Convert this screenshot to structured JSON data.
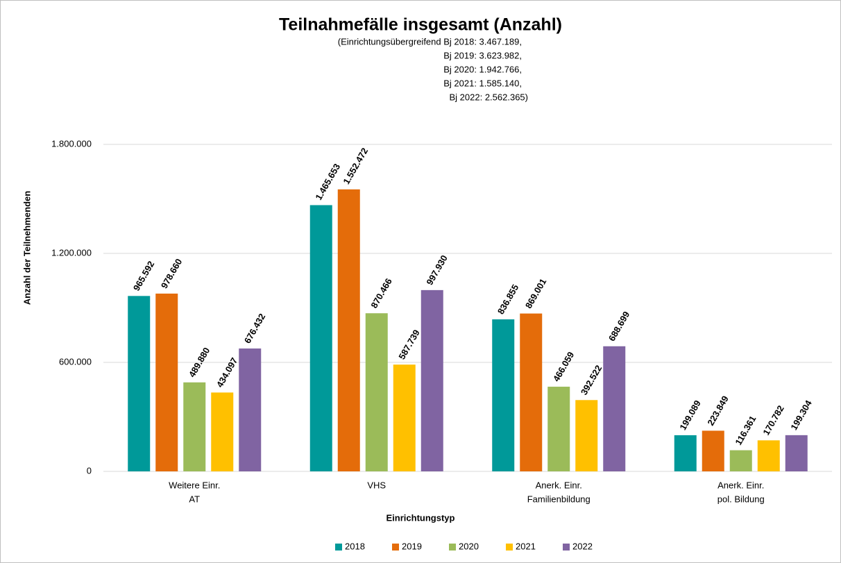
{
  "chart_data": {
    "type": "bar",
    "title": "Teilnahmefälle insgesamt (Anzahl)",
    "subtitle": [
      "(Einrichtungsübergreifend Bj 2018: 3.467.189,",
      "Bj 2019: 3.623.982,",
      "Bj 2020: 1.942.766,",
      "Bj 2021: 1.585.140,",
      "Bj 2022: 2.562.365)"
    ],
    "y_label": "Anzahl der Teilnehmenden",
    "x_label": "Einrichtungstyp",
    "categories": [
      [
        "Weitere Einr.",
        "AT"
      ],
      [
        "VHS"
      ],
      [
        "Anerk. Einr.",
        "Familienbildung"
      ],
      [
        "Anerk. Einr.",
        "pol. Bildung"
      ]
    ],
    "series": [
      {
        "name": "2018",
        "color": "#009999",
        "values": [
          965592,
          1465653,
          836855,
          199089
        ],
        "value_labels": [
          "965.592",
          "1.465.653",
          "836.855",
          "199.089"
        ]
      },
      {
        "name": "2019",
        "color": "#e46c0a",
        "values": [
          978660,
          1552472,
          869001,
          223849
        ],
        "value_labels": [
          "978.660",
          "1.552.472",
          "869.001",
          "223.849"
        ]
      },
      {
        "name": "2020",
        "color": "#9bbb59",
        "values": [
          489880,
          870466,
          466059,
          116361
        ],
        "value_labels": [
          "489.880",
          "870.466",
          "466.059",
          "116.361"
        ]
      },
      {
        "name": "2021",
        "color": "#ffc000",
        "values": [
          434097,
          587739,
          392522,
          170782
        ],
        "value_labels": [
          "434.097",
          "587.739",
          "392.522",
          "170.782"
        ]
      },
      {
        "name": "2022",
        "color": "#8064a2",
        "values": [
          676432,
          997930,
          688699,
          199304
        ],
        "value_labels": [
          "676.432",
          "997.930",
          "688.699",
          "199.304"
        ]
      }
    ],
    "ylim": [
      0,
      1800000
    ],
    "yticks": [
      0,
      {
        "value": 600000,
        "label": "600.000"
      },
      {
        "value": 1200000,
        "label": "1.200.000"
      },
      {
        "value": 1800000,
        "label": "1.800.000"
      }
    ],
    "grid": true,
    "legend": "bottom"
  }
}
